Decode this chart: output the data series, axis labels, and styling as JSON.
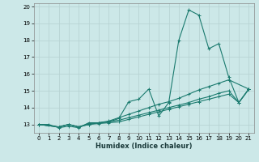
{
  "xlabel": "Humidex (Indice chaleur)",
  "xlim": [
    -0.5,
    21.5
  ],
  "ylim": [
    12.5,
    20.2
  ],
  "yticks": [
    13,
    14,
    15,
    16,
    17,
    18,
    19,
    20
  ],
  "xticks": [
    0,
    1,
    2,
    3,
    4,
    5,
    6,
    7,
    8,
    9,
    10,
    11,
    12,
    13,
    14,
    15,
    16,
    17,
    18,
    19,
    20,
    21
  ],
  "bg_color": "#cce8e8",
  "grid_color": "#b8d4d4",
  "line_color": "#1a7a6e",
  "lines": [
    {
      "x": [
        0,
        1,
        2,
        3,
        4,
        5,
        6,
        7,
        8,
        9,
        10,
        11,
        12,
        13,
        14,
        15,
        16,
        17,
        18,
        19,
        20,
        21
      ],
      "y": [
        13.0,
        13.0,
        12.8,
        12.9,
        12.8,
        13.1,
        13.1,
        13.15,
        13.35,
        14.35,
        14.5,
        15.1,
        13.5,
        14.3,
        18.0,
        19.8,
        19.5,
        17.5,
        17.8,
        15.8,
        14.3,
        15.1
      ]
    },
    {
      "x": [
        0,
        2,
        3,
        4,
        5,
        6,
        7,
        8,
        9,
        10,
        11,
        12,
        13,
        14,
        15,
        16,
        17,
        18,
        19,
        21
      ],
      "y": [
        13.0,
        12.85,
        13.0,
        12.85,
        13.05,
        13.1,
        13.2,
        13.4,
        13.6,
        13.8,
        14.0,
        14.2,
        14.35,
        14.55,
        14.8,
        15.05,
        15.25,
        15.45,
        15.65,
        15.1
      ]
    },
    {
      "x": [
        0,
        2,
        3,
        4,
        5,
        6,
        7,
        8,
        9,
        10,
        11,
        12,
        13,
        14,
        15,
        16,
        17,
        18,
        19,
        20,
        21
      ],
      "y": [
        13.0,
        12.85,
        13.0,
        12.85,
        13.0,
        13.1,
        13.15,
        13.25,
        13.4,
        13.55,
        13.7,
        13.85,
        14.0,
        14.15,
        14.3,
        14.5,
        14.65,
        14.85,
        15.0,
        14.3,
        15.1
      ]
    },
    {
      "x": [
        0,
        2,
        3,
        4,
        5,
        6,
        7,
        8,
        9,
        10,
        11,
        12,
        13,
        14,
        15,
        16,
        17,
        18,
        19,
        20,
        21
      ],
      "y": [
        13.0,
        12.85,
        13.0,
        12.85,
        13.0,
        13.05,
        13.1,
        13.15,
        13.3,
        13.45,
        13.6,
        13.75,
        13.9,
        14.05,
        14.2,
        14.35,
        14.5,
        14.65,
        14.8,
        14.3,
        15.1
      ]
    }
  ]
}
